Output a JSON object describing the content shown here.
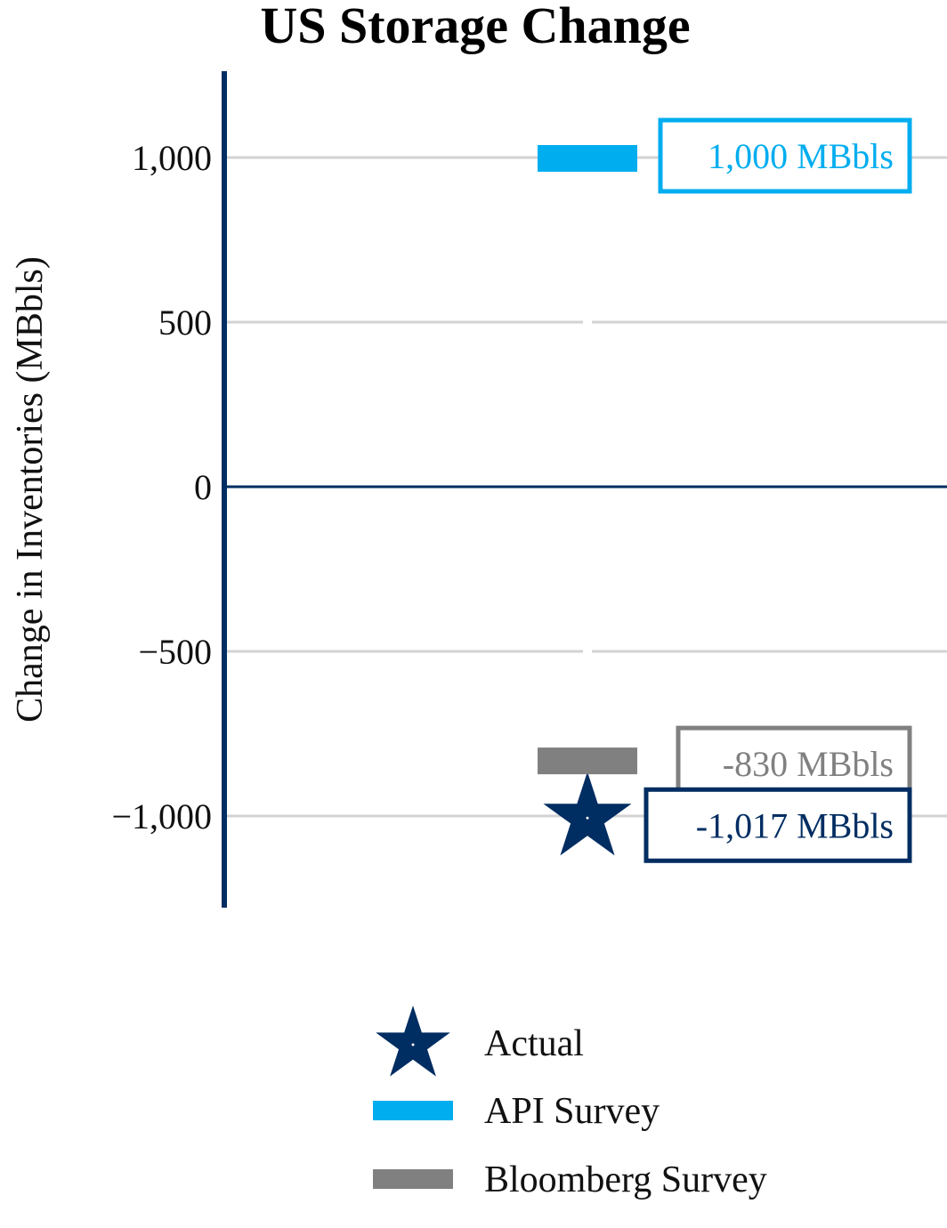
{
  "chart_data": {
    "type": "scatter",
    "title": "US Storage Change",
    "ylabel": "Change in Inventories (MBbls)",
    "xlabel": "",
    "ylim": [
      -1280,
      1260
    ],
    "yticks": [
      1000,
      500,
      0,
      -500,
      -1000
    ],
    "ytick_labels": [
      "1,000",
      "500",
      "0",
      "−500",
      "−1,000"
    ],
    "grid": true,
    "legend_position": "bottom",
    "series": [
      {
        "name": "Actual",
        "marker": "star",
        "value": -1017,
        "color": "#002d62",
        "label": "-1,017 MBbls"
      },
      {
        "name": "API Survey",
        "marker": "bar",
        "value": 1000,
        "color": "#00adef",
        "label": "1,000 MBbls"
      },
      {
        "name": "Bloomberg Survey",
        "marker": "bar",
        "value": -830,
        "color": "#808080",
        "label": "-830 MBbls"
      }
    ],
    "colors": {
      "axis": "#002d62",
      "grid": "#d3d3d3"
    }
  }
}
